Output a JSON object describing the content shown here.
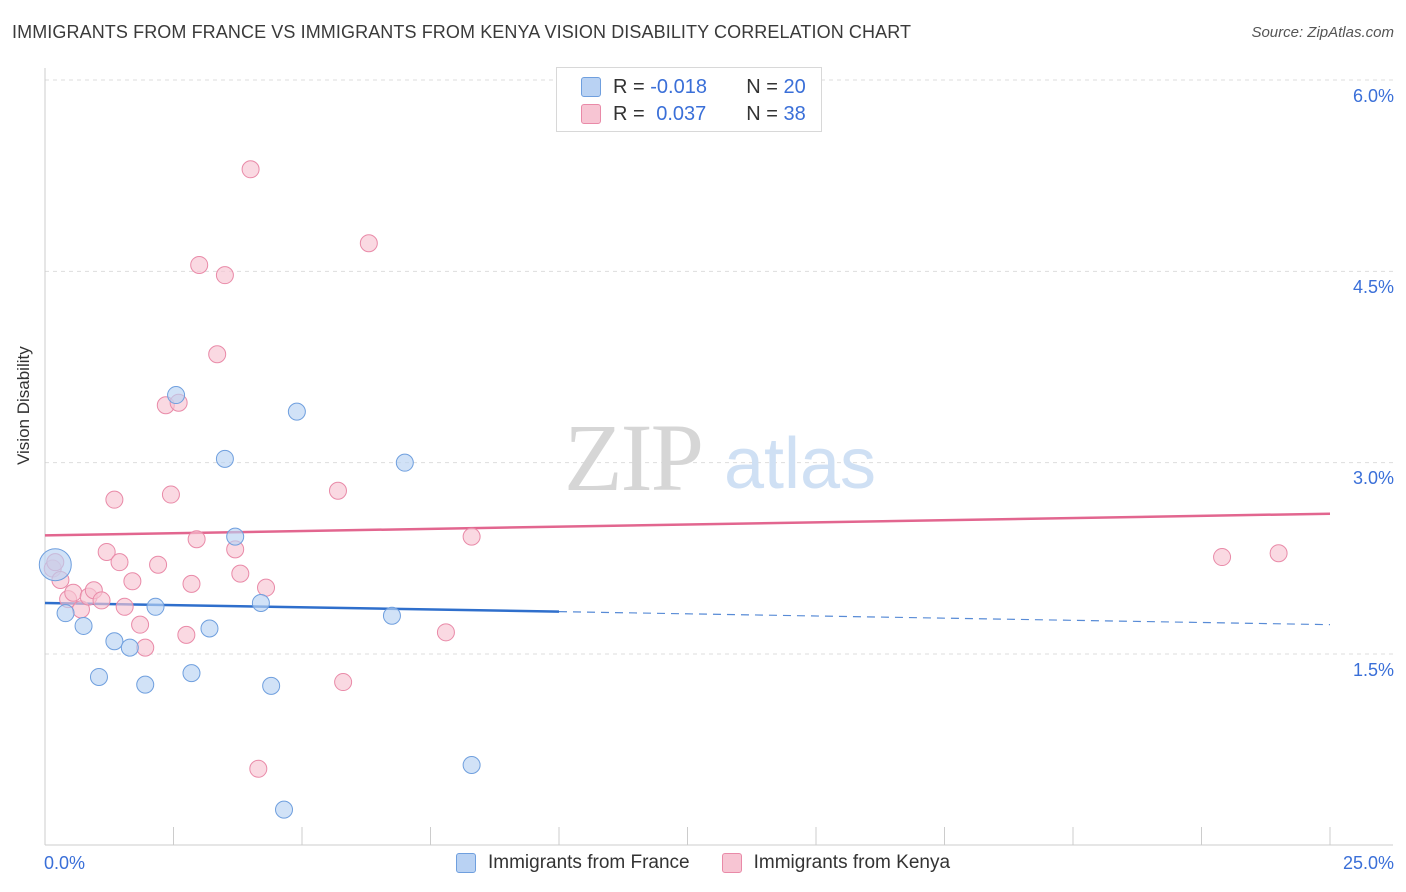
{
  "title": "IMMIGRANTS FROM FRANCE VS IMMIGRANTS FROM KENYA VISION DISABILITY CORRELATION CHART",
  "source": "Source: ZipAtlas.com",
  "watermark": {
    "zip": "ZIP",
    "atlas": "atlas"
  },
  "legend": {
    "france": {
      "r_label": "R = ",
      "r_value": "-0.018",
      "n_label": "N = ",
      "n_value": "20"
    },
    "kenya": {
      "r_label": "R = ",
      "r_value": "0.037",
      "n_label": "N = ",
      "n_value": "38"
    }
  },
  "bottom_legend": {
    "france": "Immigrants from France",
    "kenya": "Immigrants from Kenya"
  },
  "colors": {
    "france_fill": "#b9d2f3",
    "france_stroke": "#6f9fde",
    "france_line": "#2f6fcc",
    "kenya_fill": "#f7c5d3",
    "kenya_stroke": "#e98aa8",
    "kenya_line": "#e2668f",
    "axis_label": "#3a6fd8",
    "grid": "#dddddd"
  },
  "chart_data": {
    "type": "scatter",
    "title": "IMMIGRANTS FROM FRANCE VS IMMIGRANTS FROM KENYA VISION DISABILITY CORRELATION CHART",
    "xlabel": "",
    "ylabel": "Vision Disability",
    "xlim": [
      0,
      25
    ],
    "ylim": [
      0,
      6.2
    ],
    "x_tick_labels": [
      "0.0%",
      "25.0%"
    ],
    "y_ticks": [
      1.5,
      3.0,
      4.5,
      6.0
    ],
    "y_tick_labels": [
      "1.5%",
      "3.0%",
      "4.5%",
      "6.0%"
    ],
    "grid": "horizontal dashed",
    "legend_position": "top-center",
    "series": [
      {
        "name": "Immigrants from France",
        "r": -0.018,
        "n": 20,
        "trend": {
          "x0": 0,
          "y0": 1.9,
          "x1": 25,
          "y1": 1.73,
          "solid_until": 10
        },
        "points": [
          {
            "x": 0.2,
            "y": 2.2,
            "big": true
          },
          {
            "x": 0.4,
            "y": 1.82
          },
          {
            "x": 0.75,
            "y": 1.72
          },
          {
            "x": 1.05,
            "y": 1.32
          },
          {
            "x": 1.35,
            "y": 1.6
          },
          {
            "x": 1.65,
            "y": 1.55
          },
          {
            "x": 1.95,
            "y": 1.26
          },
          {
            "x": 2.15,
            "y": 1.87
          },
          {
            "x": 2.55,
            "y": 3.53
          },
          {
            "x": 2.85,
            "y": 1.35
          },
          {
            "x": 3.2,
            "y": 1.7
          },
          {
            "x": 3.5,
            "y": 3.03
          },
          {
            "x": 3.7,
            "y": 2.42
          },
          {
            "x": 4.2,
            "y": 1.9
          },
          {
            "x": 4.4,
            "y": 1.25
          },
          {
            "x": 4.65,
            "y": 0.28
          },
          {
            "x": 4.9,
            "y": 3.4
          },
          {
            "x": 6.75,
            "y": 1.8
          },
          {
            "x": 7.0,
            "y": 3.0
          },
          {
            "x": 8.3,
            "y": 0.63
          }
        ]
      },
      {
        "name": "Immigrants from Kenya",
        "r": 0.037,
        "n": 38,
        "trend": {
          "x0": 0,
          "y0": 2.43,
          "x1": 25,
          "y1": 2.6
        },
        "points": [
          {
            "x": 0.15,
            "y": 2.17
          },
          {
            "x": 0.3,
            "y": 2.08
          },
          {
            "x": 0.45,
            "y": 1.93
          },
          {
            "x": 0.55,
            "y": 1.98
          },
          {
            "x": 0.7,
            "y": 1.85
          },
          {
            "x": 0.85,
            "y": 1.95
          },
          {
            "x": 0.95,
            "y": 2.0
          },
          {
            "x": 1.1,
            "y": 1.92
          },
          {
            "x": 1.2,
            "y": 2.3
          },
          {
            "x": 1.35,
            "y": 2.71
          },
          {
            "x": 1.45,
            "y": 2.22
          },
          {
            "x": 1.55,
            "y": 1.87
          },
          {
            "x": 1.7,
            "y": 2.07
          },
          {
            "x": 1.85,
            "y": 1.73
          },
          {
            "x": 1.95,
            "y": 1.55
          },
          {
            "x": 2.2,
            "y": 2.2
          },
          {
            "x": 2.35,
            "y": 3.45
          },
          {
            "x": 2.45,
            "y": 2.75
          },
          {
            "x": 2.6,
            "y": 3.47
          },
          {
            "x": 2.75,
            "y": 1.65
          },
          {
            "x": 2.85,
            "y": 2.05
          },
          {
            "x": 2.95,
            "y": 2.4
          },
          {
            "x": 3.0,
            "y": 4.55
          },
          {
            "x": 3.35,
            "y": 3.85
          },
          {
            "x": 3.5,
            "y": 4.47
          },
          {
            "x": 3.7,
            "y": 2.32
          },
          {
            "x": 3.8,
            "y": 2.13
          },
          {
            "x": 4.0,
            "y": 5.3
          },
          {
            "x": 4.15,
            "y": 0.6
          },
          {
            "x": 4.3,
            "y": 2.02
          },
          {
            "x": 5.7,
            "y": 2.78
          },
          {
            "x": 5.8,
            "y": 1.28
          },
          {
            "x": 6.3,
            "y": 4.72
          },
          {
            "x": 7.8,
            "y": 1.67
          },
          {
            "x": 8.3,
            "y": 2.42
          },
          {
            "x": 22.9,
            "y": 2.26
          },
          {
            "x": 24.0,
            "y": 2.29
          },
          {
            "x": 0.2,
            "y": 2.22
          }
        ]
      }
    ]
  }
}
